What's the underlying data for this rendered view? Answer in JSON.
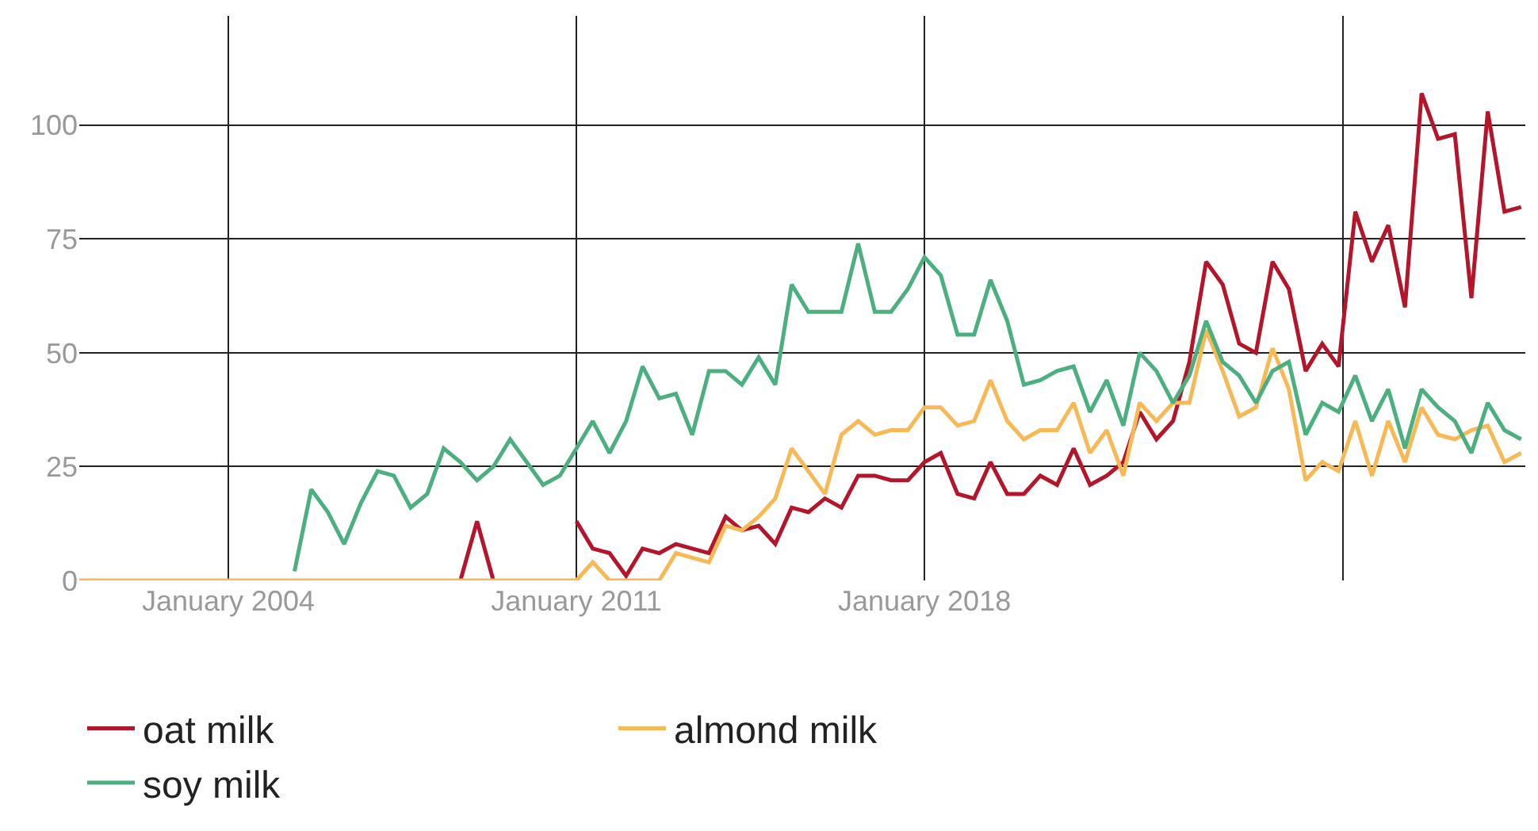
{
  "chart_data": {
    "type": "line",
    "x": [
      "2001-01",
      "2001-05",
      "2001-09",
      "2002-01",
      "2002-05",
      "2002-09",
      "2003-01",
      "2003-05",
      "2003-09",
      "2004-01",
      "2004-05",
      "2004-09",
      "2005-01",
      "2005-05",
      "2005-09",
      "2006-01",
      "2006-05",
      "2006-09",
      "2007-01",
      "2007-05",
      "2007-09",
      "2008-01",
      "2008-05",
      "2008-09",
      "2009-01",
      "2009-05",
      "2009-09",
      "2010-01",
      "2010-05",
      "2010-09",
      "2011-01",
      "2011-05",
      "2011-09",
      "2012-01",
      "2012-05",
      "2012-09",
      "2013-01",
      "2013-05",
      "2013-09",
      "2014-01",
      "2014-05",
      "2014-09",
      "2015-01",
      "2015-05",
      "2015-09",
      "2016-01",
      "2016-05",
      "2016-09",
      "2017-01",
      "2017-05",
      "2017-09",
      "2018-01",
      "2018-05",
      "2018-09",
      "2019-01",
      "2019-05",
      "2019-09",
      "2020-01",
      "2020-05",
      "2020-09",
      "2021-01",
      "2021-05",
      "2021-09",
      "2022-01",
      "2022-05",
      "2022-09",
      "2023-01",
      "2023-05",
      "2023-09",
      "2024-01",
      "2024-05",
      "2024-09",
      "2025-01",
      "2025-05",
      "2025-09",
      "2026-01",
      "2026-05",
      "2026-09",
      "2027-01",
      "2027-05",
      "2027-09",
      "2028-01",
      "2028-05",
      "2028-09",
      "2029-01",
      "2029-05",
      "2029-09",
      "2030-01"
    ],
    "series": [
      {
        "name": "oat milk",
        "color": "#b5152b",
        "values": [
          null,
          null,
          null,
          null,
          null,
          null,
          null,
          null,
          null,
          null,
          null,
          null,
          null,
          null,
          null,
          null,
          null,
          null,
          null,
          null,
          null,
          null,
          null,
          0,
          13,
          0,
          null,
          null,
          null,
          null,
          13,
          7,
          6,
          1,
          7,
          6,
          8,
          7,
          6,
          14,
          11,
          12,
          8,
          16,
          15,
          18,
          16,
          23,
          23,
          22,
          22,
          26,
          28,
          19,
          18,
          26,
          19,
          19,
          23,
          21,
          29,
          21,
          23,
          26,
          37,
          31,
          35,
          48,
          70,
          65,
          52,
          50,
          70,
          64,
          46,
          52,
          47,
          81,
          70,
          78,
          60,
          107,
          97,
          98,
          62,
          103,
          81,
          82
        ]
      },
      {
        "name": "almond milk",
        "color": "#f7b955",
        "values": [
          0,
          0,
          0,
          0,
          0,
          0,
          0,
          0,
          0,
          0,
          0,
          0,
          0,
          0,
          0,
          0,
          0,
          0,
          0,
          0,
          0,
          0,
          0,
          0,
          0,
          0,
          0,
          0,
          0,
          0,
          0,
          4,
          0,
          0,
          0,
          0,
          6,
          5,
          4,
          12,
          11,
          14,
          18,
          29,
          24,
          19,
          32,
          35,
          32,
          33,
          33,
          38,
          38,
          34,
          35,
          44,
          35,
          31,
          33,
          33,
          39,
          28,
          33,
          23,
          39,
          35,
          39,
          39,
          55,
          46,
          36,
          38,
          51,
          42,
          22,
          26,
          24,
          35,
          23,
          35,
          26,
          38,
          32,
          31,
          33,
          34,
          26,
          28
        ]
      },
      {
        "name": "soy milk",
        "color": "#4caf80",
        "values": [
          null,
          null,
          null,
          null,
          null,
          null,
          null,
          null,
          null,
          null,
          null,
          null,
          null,
          2,
          20,
          15,
          8,
          17,
          24,
          23,
          16,
          19,
          29,
          26,
          22,
          25,
          31,
          26,
          21,
          23,
          29,
          35,
          28,
          35,
          47,
          40,
          41,
          32,
          46,
          46,
          43,
          49,
          43,
          65,
          59,
          59,
          59,
          74,
          59,
          59,
          64,
          71,
          67,
          54,
          54,
          66,
          57,
          43,
          44,
          46,
          47,
          37,
          44,
          34,
          50,
          46,
          39,
          45,
          57,
          48,
          45,
          39,
          46,
          48,
          32,
          39,
          37,
          45,
          35,
          42,
          29,
          42,
          38,
          35,
          28,
          39,
          33,
          31
        ]
      }
    ],
    "xlim": [
      "2001-01",
      "2030-02"
    ],
    "xticks": [
      {
        "value": "2004-01",
        "label": "January 2004"
      },
      {
        "value": "2011-01",
        "label": "January 2011"
      },
      {
        "value": "2018-01",
        "label": "January 2018"
      },
      {
        "value": "2026-06",
        "label": null
      }
    ],
    "ylim": [
      0,
      124
    ],
    "yticks": [
      0,
      25,
      50,
      75,
      100
    ],
    "grid": true,
    "legend": "bottom",
    "marker": "none",
    "line_style": "solid"
  }
}
